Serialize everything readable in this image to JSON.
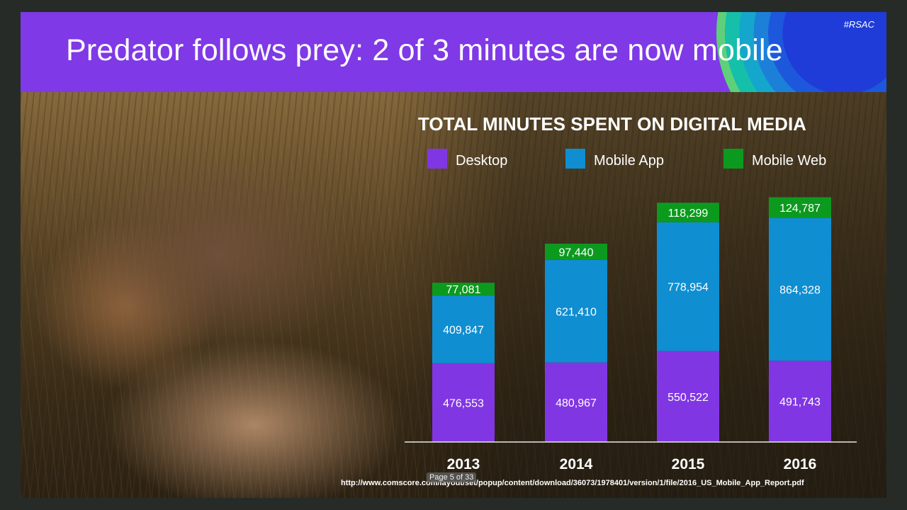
{
  "slide": {
    "title": "Predator follows prey: 2 of 3 minutes are now mobile",
    "hashtag": "#RSAC",
    "page_indicator": "Page 5 of 33",
    "source_url": "http://www.comscore.com/layout/set/popup/content/download/36073/1978401/version/1/file/2016_US_Mobile_App_Report.pdf"
  },
  "colors": {
    "title_bar": "#7f39e6",
    "desktop": "#8136e3",
    "mobile_app": "#0f8ed1",
    "mobile_web": "#0c9a1e"
  },
  "chart_data": {
    "type": "bar",
    "stacked": true,
    "title": "TOTAL MINUTES SPENT ON DIGITAL MEDIA",
    "categories": [
      "2013",
      "2014",
      "2015",
      "2016"
    ],
    "series": [
      {
        "name": "Desktop",
        "color": "#8136e3",
        "values": [
          476553,
          480967,
          550522,
          491743
        ]
      },
      {
        "name": "Mobile App",
        "color": "#0f8ed1",
        "values": [
          409847,
          621410,
          778954,
          864328
        ]
      },
      {
        "name": "Mobile Web",
        "color": "#0c9a1e",
        "values": [
          77081,
          97440,
          118299,
          124787
        ]
      }
    ],
    "data_labels": true,
    "legend_position": "top",
    "grid": false,
    "ylim": [
      0,
      1500000
    ]
  }
}
